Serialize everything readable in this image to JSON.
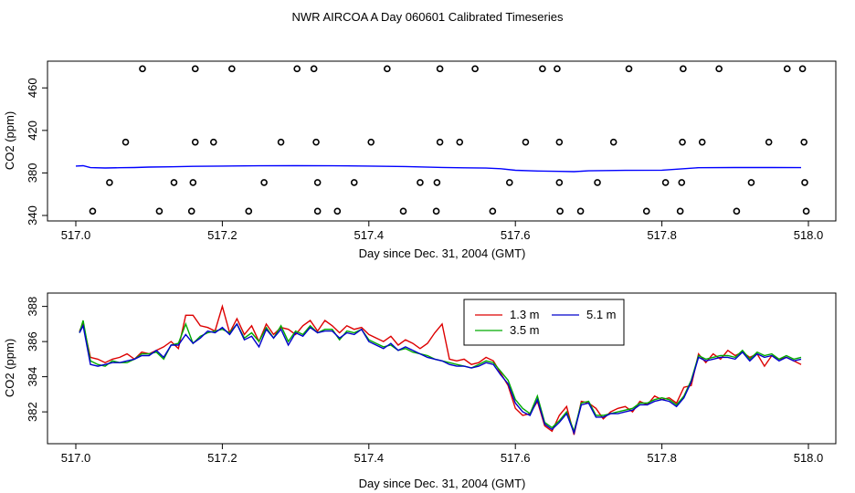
{
  "title": "NWR AIRCOA A  Day 060601  Calibrated Timeseries",
  "chart_data": [
    {
      "type": "scatter+line",
      "xlabel": "Day since Dec. 31, 2004 (GMT)",
      "ylabel": "CO2 (ppm)",
      "xlim": [
        517.0,
        518.0
      ],
      "ylim": [
        340,
        480
      ],
      "xticks": [
        517.0,
        517.2,
        517.4,
        517.6,
        517.8,
        518.0
      ],
      "xtick_labels": [
        "517.0",
        "517.2",
        "517.4",
        "517.6",
        "517.8",
        "518.0"
      ],
      "yticks": [
        340,
        380,
        420,
        460
      ],
      "ytick_labels": [
        "340",
        "380",
        "420",
        "460"
      ],
      "calibration_points": {
        "marker": "open-circle",
        "groups": [
          {
            "level": 478,
            "x": [
              517.091,
              517.163,
              517.213,
              517.302,
              517.325,
              517.425,
              517.497,
              517.545,
              517.637,
              517.657,
              517.755,
              517.829,
              517.878,
              517.971,
              517.992
            ]
          },
          {
            "level": 409,
            "x": [
              517.068,
              517.163,
              517.188,
              517.28,
              517.328,
              517.403,
              517.497,
              517.524,
              517.614,
              517.66,
              517.734,
              517.828,
              517.855,
              517.946,
              517.994
            ]
          },
          {
            "level": 371,
            "x": [
              517.046,
              517.134,
              517.16,
              517.257,
              517.33,
              517.38,
              517.47,
              517.493,
              517.592,
              517.66,
              517.712,
              517.805,
              517.827,
              517.922,
              517.995
            ]
          },
          {
            "level": 344,
            "x": [
              517.023,
              517.114,
              517.158,
              517.236,
              517.33,
              517.357,
              517.447,
              517.492,
              517.569,
              517.661,
              517.689,
              517.779,
              517.825,
              517.902,
              517.997
            ]
          }
        ]
      },
      "series_color": "#0000ff",
      "line": {
        "x": [
          517.0,
          517.01,
          517.02,
          517.04,
          517.06,
          517.08,
          517.1,
          517.13,
          517.16,
          517.2,
          517.25,
          517.3,
          517.35,
          517.4,
          517.45,
          517.5,
          517.53,
          517.56,
          517.58,
          517.6,
          517.63,
          517.66,
          517.68,
          517.7,
          517.75,
          517.8,
          517.85,
          517.9,
          517.95,
          517.99
        ],
        "y": [
          386.5,
          386.8,
          385.0,
          384.7,
          384.9,
          385.1,
          385.5,
          385.8,
          386.2,
          386.5,
          386.7,
          386.8,
          386.7,
          386.5,
          386.0,
          385.2,
          384.8,
          384.6,
          384.0,
          382.5,
          381.8,
          381.5,
          381.2,
          382.0,
          382.4,
          382.6,
          384.9,
          385.1,
          385.1,
          385.0
        ]
      }
    },
    {
      "type": "line",
      "xlabel": "Day since Dec. 31, 2004 (GMT)",
      "ylabel": "CO2 (ppm)",
      "xlim": [
        517.0,
        518.0
      ],
      "ylim": [
        380.5,
        388.5
      ],
      "xticks": [
        517.0,
        517.2,
        517.4,
        517.6,
        517.8,
        518.0
      ],
      "xtick_labels": [
        "517.0",
        "517.2",
        "517.4",
        "517.6",
        "517.8",
        "518.0"
      ],
      "yticks": [
        382,
        384,
        386,
        388
      ],
      "ytick_labels": [
        "382",
        "384",
        "386",
        "388"
      ],
      "legend_position": "top-center",
      "x": [
        517.005,
        517.01,
        517.02,
        517.03,
        517.04,
        517.05,
        517.06,
        517.07,
        517.08,
        517.09,
        517.1,
        517.11,
        517.12,
        517.13,
        517.14,
        517.15,
        517.16,
        517.17,
        517.18,
        517.19,
        517.2,
        517.21,
        517.22,
        517.23,
        517.24,
        517.25,
        517.26,
        517.27,
        517.28,
        517.29,
        517.3,
        517.31,
        517.32,
        517.33,
        517.34,
        517.35,
        517.36,
        517.37,
        517.38,
        517.39,
        517.4,
        517.41,
        517.42,
        517.43,
        517.44,
        517.45,
        517.46,
        517.47,
        517.48,
        517.49,
        517.5,
        517.51,
        517.52,
        517.53,
        517.54,
        517.55,
        517.56,
        517.57,
        517.58,
        517.59,
        517.6,
        517.61,
        517.62,
        517.63,
        517.64,
        517.65,
        517.66,
        517.67,
        517.68,
        517.69,
        517.7,
        517.71,
        517.72,
        517.73,
        517.74,
        517.75,
        517.76,
        517.77,
        517.78,
        517.79,
        517.8,
        517.81,
        517.82,
        517.83,
        517.84,
        517.85,
        517.86,
        517.87,
        517.88,
        517.89,
        517.9,
        517.91,
        517.92,
        517.93,
        517.94,
        517.95,
        517.96,
        517.97,
        517.98,
        517.99
      ],
      "series": [
        {
          "name": "1.3 m",
          "color": "#dd0000",
          "values": [
            386.6,
            387.0,
            385.1,
            385.0,
            384.8,
            385.0,
            385.1,
            385.3,
            385.0,
            385.4,
            385.3,
            385.5,
            385.7,
            386.0,
            385.6,
            387.5,
            387.5,
            386.9,
            386.8,
            386.6,
            388.0,
            386.5,
            387.3,
            386.4,
            386.9,
            386.0,
            387.0,
            386.4,
            386.8,
            386.7,
            386.4,
            386.9,
            387.2,
            386.6,
            387.2,
            386.9,
            386.5,
            386.9,
            386.7,
            386.8,
            386.4,
            386.2,
            386.0,
            386.3,
            385.8,
            386.1,
            385.9,
            385.6,
            385.9,
            386.5,
            387.0,
            385.0,
            384.9,
            385.0,
            384.7,
            384.8,
            385.1,
            384.9,
            384.2,
            383.5,
            382.2,
            381.8,
            381.9,
            382.6,
            381.2,
            380.9,
            381.8,
            382.3,
            380.7,
            382.6,
            382.5,
            382.2,
            381.6,
            382.0,
            382.2,
            382.3,
            382.0,
            382.6,
            382.4,
            382.9,
            382.7,
            382.8,
            382.5,
            383.4,
            383.5,
            385.3,
            384.8,
            385.3,
            385.0,
            385.5,
            385.2,
            385.4,
            385.1,
            385.3,
            384.6,
            385.2,
            385.0,
            385.1,
            384.9,
            384.7
          ]
        },
        {
          "name": "3.5 m",
          "color": "#00aa00",
          "values": [
            386.5,
            387.2,
            384.9,
            384.7,
            384.6,
            384.9,
            384.8,
            384.8,
            385.0,
            385.3,
            385.3,
            385.4,
            385.0,
            385.8,
            385.9,
            387.0,
            385.9,
            386.3,
            386.5,
            386.6,
            386.7,
            386.5,
            387.0,
            386.2,
            386.5,
            386.0,
            386.8,
            386.2,
            386.9,
            386.0,
            386.6,
            386.4,
            386.9,
            386.5,
            386.7,
            386.7,
            386.1,
            386.6,
            386.5,
            386.7,
            386.1,
            385.9,
            385.7,
            385.8,
            385.5,
            385.6,
            385.4,
            385.3,
            385.2,
            385.0,
            384.9,
            384.8,
            384.7,
            384.6,
            384.5,
            384.7,
            384.9,
            384.8,
            384.3,
            383.8,
            382.7,
            382.2,
            381.9,
            382.9,
            381.4,
            381.1,
            381.5,
            382.0,
            380.9,
            382.5,
            382.6,
            381.8,
            381.8,
            381.9,
            382.0,
            382.1,
            382.2,
            382.5,
            382.5,
            382.7,
            382.8,
            382.7,
            382.4,
            382.9,
            383.8,
            385.2,
            385.0,
            385.1,
            385.2,
            385.2,
            385.1,
            385.5,
            385.0,
            385.4,
            385.2,
            385.3,
            385.0,
            385.2,
            385.0,
            385.1
          ]
        },
        {
          "name": "5.1 m",
          "color": "#0000cc",
          "values": [
            386.5,
            386.9,
            384.7,
            384.6,
            384.7,
            384.8,
            384.8,
            384.9,
            385.0,
            385.2,
            385.2,
            385.5,
            385.1,
            385.8,
            385.8,
            386.4,
            385.9,
            386.2,
            386.6,
            386.5,
            386.8,
            386.4,
            387.0,
            386.1,
            386.3,
            385.7,
            386.7,
            386.2,
            386.7,
            385.8,
            386.5,
            386.3,
            386.8,
            386.5,
            386.6,
            386.6,
            386.2,
            386.5,
            386.4,
            386.7,
            386.0,
            385.8,
            385.6,
            385.9,
            385.5,
            385.7,
            385.5,
            385.3,
            385.1,
            385.0,
            384.9,
            384.7,
            384.6,
            384.6,
            384.5,
            384.6,
            384.8,
            384.7,
            384.1,
            383.6,
            382.5,
            382.0,
            381.8,
            382.7,
            381.3,
            381.0,
            381.4,
            381.9,
            380.8,
            382.4,
            382.5,
            381.7,
            381.7,
            381.9,
            381.9,
            382.0,
            382.1,
            382.4,
            382.4,
            382.6,
            382.7,
            382.6,
            382.3,
            382.8,
            383.7,
            385.1,
            384.9,
            385.0,
            385.1,
            385.1,
            385.0,
            385.4,
            384.9,
            385.3,
            385.1,
            385.2,
            384.9,
            385.1,
            384.9,
            385.0
          ]
        }
      ]
    }
  ]
}
